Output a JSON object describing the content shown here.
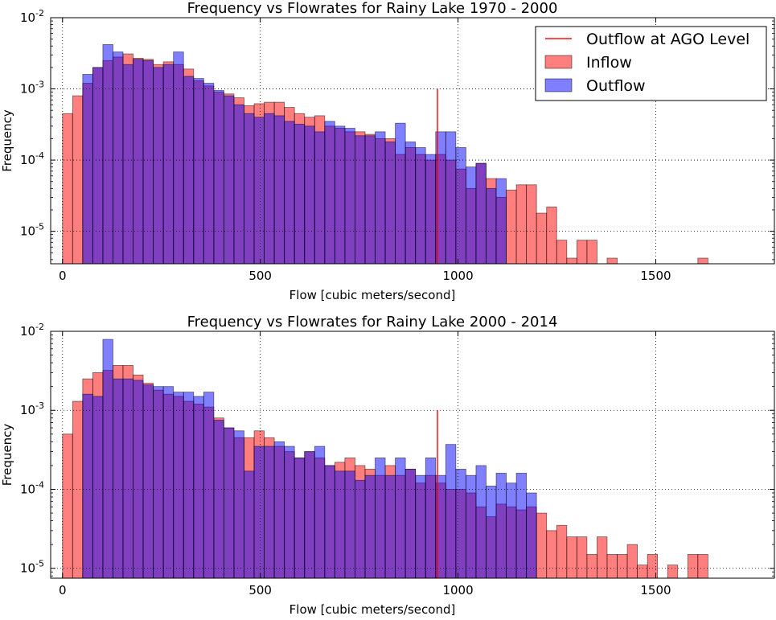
{
  "chart_data": [
    {
      "type": "histogram",
      "title": "Frequency vs Flowrates for Rainy Lake 1970 - 2000",
      "xlabel": "Flow [cubic meters/second]",
      "ylabel": "Frequency",
      "xlim": [
        -30,
        1800
      ],
      "ylim": [
        3.5e-06,
        0.01
      ],
      "yscale": "log",
      "grid": true,
      "legend_position": "top-right",
      "x_ticks": [
        {
          "value": 0,
          "label": "0"
        },
        {
          "value": 500,
          "label": "500"
        },
        {
          "value": 1000,
          "label": "1000"
        },
        {
          "value": 1500,
          "label": "1500"
        }
      ],
      "y_ticks": [
        {
          "value": 1e-05,
          "base": "10",
          "exp": "-5"
        },
        {
          "value": 0.0001,
          "base": "10",
          "exp": "-4"
        },
        {
          "value": 0.001,
          "base": "10",
          "exp": "-3"
        },
        {
          "value": 0.01,
          "base": "10",
          "exp": "-2"
        }
      ],
      "line": {
        "name": "Outflow at AGO Level",
        "x": 948,
        "y": [
          3.5e-06,
          0.001
        ],
        "color": "#ff0000"
      },
      "series": [
        {
          "name": "Inflow",
          "color": "#ff0000",
          "bin_width": 25.5,
          "bins": [
            {
              "x0": 0,
              "y": 0.00045
            },
            {
              "x0": 25.5,
              "y": 0.0008
            },
            {
              "x0": 51,
              "y": 0.0012
            },
            {
              "x0": 76.5,
              "y": 0.002
            },
            {
              "x0": 102,
              "y": 0.0025
            },
            {
              "x0": 127.5,
              "y": 0.0028
            },
            {
              "x0": 153,
              "y": 0.0031
            },
            {
              "x0": 178.5,
              "y": 0.0027
            },
            {
              "x0": 204,
              "y": 0.0026
            },
            {
              "x0": 229.5,
              "y": 0.0022
            },
            {
              "x0": 255,
              "y": 0.0024
            },
            {
              "x0": 280.5,
              "y": 0.0022
            },
            {
              "x0": 306,
              "y": 0.0019
            },
            {
              "x0": 331.5,
              "y": 0.0013
            },
            {
              "x0": 357,
              "y": 0.0011
            },
            {
              "x0": 382.5,
              "y": 0.0009
            },
            {
              "x0": 408,
              "y": 0.00085
            },
            {
              "x0": 433.5,
              "y": 0.00075
            },
            {
              "x0": 459,
              "y": 0.00058
            },
            {
              "x0": 484.5,
              "y": 0.00062
            },
            {
              "x0": 510,
              "y": 0.00065
            },
            {
              "x0": 535.5,
              "y": 0.00065
            },
            {
              "x0": 561,
              "y": 0.00055
            },
            {
              "x0": 586.5,
              "y": 0.00045
            },
            {
              "x0": 612,
              "y": 0.0004
            },
            {
              "x0": 637.5,
              "y": 0.00042
            },
            {
              "x0": 663,
              "y": 0.0003
            },
            {
              "x0": 688.5,
              "y": 0.00028
            },
            {
              "x0": 714,
              "y": 0.00025
            },
            {
              "x0": 739.5,
              "y": 0.00025
            },
            {
              "x0": 765,
              "y": 0.00023
            },
            {
              "x0": 790.5,
              "y": 0.0002
            },
            {
              "x0": 816,
              "y": 0.0002
            },
            {
              "x0": 841.5,
              "y": 0.00012
            },
            {
              "x0": 867,
              "y": 0.00015
            },
            {
              "x0": 892.5,
              "y": 0.00012
            },
            {
              "x0": 918,
              "y": 0.0001
            },
            {
              "x0": 943.5,
              "y": 0.00012
            },
            {
              "x0": 969,
              "y": 0.0001
            },
            {
              "x0": 994.5,
              "y": 7.5e-05
            },
            {
              "x0": 1020,
              "y": 4e-05
            },
            {
              "x0": 1045.5,
              "y": 9e-05
            },
            {
              "x0": 1071,
              "y": 5.5e-05
            },
            {
              "x0": 1096.5,
              "y": 3e-05
            },
            {
              "x0": 1122,
              "y": 3.8e-05
            },
            {
              "x0": 1147.5,
              "y": 4.5e-05
            },
            {
              "x0": 1173,
              "y": 4.5e-05
            },
            {
              "x0": 1198.5,
              "y": 1.8e-05
            },
            {
              "x0": 1224,
              "y": 2.2e-05
            },
            {
              "x0": 1249.5,
              "y": 7.5e-06
            },
            {
              "x0": 1275,
              "y": 4.2e-06
            },
            {
              "x0": 1300.5,
              "y": 7.5e-06
            },
            {
              "x0": 1326,
              "y": 7.5e-06
            },
            {
              "x0": 1377,
              "y": 4.2e-06
            },
            {
              "x0": 1606.5,
              "y": 4.2e-06
            }
          ]
        },
        {
          "name": "Outflow",
          "color": "#0000ff",
          "bin_width": 25.5,
          "bins": [
            {
              "x0": 51,
              "y": 0.0016
            },
            {
              "x0": 76.5,
              "y": 0.002
            },
            {
              "x0": 102,
              "y": 0.0042
            },
            {
              "x0": 127.5,
              "y": 0.0033
            },
            {
              "x0": 153,
              "y": 0.0022
            },
            {
              "x0": 178.5,
              "y": 0.0026
            },
            {
              "x0": 204,
              "y": 0.0025
            },
            {
              "x0": 229.5,
              "y": 0.002
            },
            {
              "x0": 255,
              "y": 0.0022
            },
            {
              "x0": 280.5,
              "y": 0.0033
            },
            {
              "x0": 306,
              "y": 0.0015
            },
            {
              "x0": 331.5,
              "y": 0.0014
            },
            {
              "x0": 357,
              "y": 0.0012
            },
            {
              "x0": 382.5,
              "y": 0.00095
            },
            {
              "x0": 408,
              "y": 0.0008
            },
            {
              "x0": 433.5,
              "y": 0.0006
            },
            {
              "x0": 459,
              "y": 0.00045
            },
            {
              "x0": 484.5,
              "y": 0.0004
            },
            {
              "x0": 510,
              "y": 0.00045
            },
            {
              "x0": 535.5,
              "y": 0.00042
            },
            {
              "x0": 561,
              "y": 0.00035
            },
            {
              "x0": 586.5,
              "y": 0.00032
            },
            {
              "x0": 612,
              "y": 0.0003
            },
            {
              "x0": 637.5,
              "y": 0.00025
            },
            {
              "x0": 663,
              "y": 0.00035
            },
            {
              "x0": 688.5,
              "y": 0.0003
            },
            {
              "x0": 714,
              "y": 0.00028
            },
            {
              "x0": 739.5,
              "y": 0.00022
            },
            {
              "x0": 765,
              "y": 0.00022
            },
            {
              "x0": 790.5,
              "y": 0.00025
            },
            {
              "x0": 816,
              "y": 0.00018
            },
            {
              "x0": 841.5,
              "y": 0.00033
            },
            {
              "x0": 867,
              "y": 0.00018
            },
            {
              "x0": 892.5,
              "y": 0.00015
            },
            {
              "x0": 918,
              "y": 0.00012
            },
            {
              "x0": 943.5,
              "y": 0.00025
            },
            {
              "x0": 969,
              "y": 0.00025
            },
            {
              "x0": 994.5,
              "y": 0.00015
            },
            {
              "x0": 1020,
              "y": 8e-05
            },
            {
              "x0": 1045.5,
              "y": 9e-05
            },
            {
              "x0": 1071,
              "y": 4e-05
            },
            {
              "x0": 1096.5,
              "y": 5.5e-05
            }
          ]
        }
      ]
    },
    {
      "type": "histogram",
      "title": "Frequency vs Flowrates for Rainy Lake 2000 - 2014",
      "xlabel": "Flow [cubic meters/second]",
      "ylabel": "Frequency",
      "xlim": [
        -30,
        1800
      ],
      "ylim": [
        7.5e-06,
        0.01
      ],
      "yscale": "log",
      "grid": true,
      "x_ticks": [
        {
          "value": 0,
          "label": "0"
        },
        {
          "value": 500,
          "label": "500"
        },
        {
          "value": 1000,
          "label": "1000"
        },
        {
          "value": 1500,
          "label": "1500"
        }
      ],
      "y_ticks": [
        {
          "value": 1e-05,
          "base": "10",
          "exp": "-5"
        },
        {
          "value": 0.0001,
          "base": "10",
          "exp": "-4"
        },
        {
          "value": 0.001,
          "base": "10",
          "exp": "-3"
        },
        {
          "value": 0.01,
          "base": "10",
          "exp": "-2"
        }
      ],
      "line": {
        "name": "Outflow at AGO Level",
        "x": 948,
        "y": [
          7.5e-06,
          0.001
        ],
        "color": "#ff0000"
      },
      "series": [
        {
          "name": "Inflow",
          "color": "#ff0000",
          "bin_width": 25.5,
          "bins": [
            {
              "x0": 0,
              "y": 0.0005
            },
            {
              "x0": 25.5,
              "y": 0.0013
            },
            {
              "x0": 51,
              "y": 0.0025
            },
            {
              "x0": 76.5,
              "y": 0.003
            },
            {
              "x0": 102,
              "y": 0.0032
            },
            {
              "x0": 127.5,
              "y": 0.0037
            },
            {
              "x0": 153,
              "y": 0.0037
            },
            {
              "x0": 178.5,
              "y": 0.0028
            },
            {
              "x0": 204,
              "y": 0.0022
            },
            {
              "x0": 229.5,
              "y": 0.0018
            },
            {
              "x0": 255,
              "y": 0.0016
            },
            {
              "x0": 280.5,
              "y": 0.0015
            },
            {
              "x0": 306,
              "y": 0.0013
            },
            {
              "x0": 331.5,
              "y": 0.0012
            },
            {
              "x0": 357,
              "y": 0.0011
            },
            {
              "x0": 382.5,
              "y": 0.0008
            },
            {
              "x0": 408,
              "y": 0.0006
            },
            {
              "x0": 433.5,
              "y": 0.00045
            },
            {
              "x0": 459,
              "y": 0.00045
            },
            {
              "x0": 484.5,
              "y": 0.00055
            },
            {
              "x0": 510,
              "y": 0.00045
            },
            {
              "x0": 535.5,
              "y": 0.00035
            },
            {
              "x0": 561,
              "y": 0.0003
            },
            {
              "x0": 586.5,
              "y": 0.00025
            },
            {
              "x0": 612,
              "y": 0.0003
            },
            {
              "x0": 637.5,
              "y": 0.00025
            },
            {
              "x0": 663,
              "y": 0.0002
            },
            {
              "x0": 688.5,
              "y": 0.00022
            },
            {
              "x0": 714,
              "y": 0.00025
            },
            {
              "x0": 739.5,
              "y": 0.0002
            },
            {
              "x0": 765,
              "y": 0.00018
            },
            {
              "x0": 790.5,
              "y": 0.00015
            },
            {
              "x0": 816,
              "y": 0.0002
            },
            {
              "x0": 841.5,
              "y": 0.00015
            },
            {
              "x0": 867,
              "y": 0.00018
            },
            {
              "x0": 892.5,
              "y": 0.00012
            },
            {
              "x0": 918,
              "y": 0.00015
            },
            {
              "x0": 943.5,
              "y": 0.00012
            },
            {
              "x0": 969,
              "y": 0.0001
            },
            {
              "x0": 994.5,
              "y": 0.0001
            },
            {
              "x0": 1020,
              "y": 9e-05
            },
            {
              "x0": 1045.5,
              "y": 6e-05
            },
            {
              "x0": 1071,
              "y": 4.5e-05
            },
            {
              "x0": 1096.5,
              "y": 6.5e-05
            },
            {
              "x0": 1122,
              "y": 6e-05
            },
            {
              "x0": 1147.5,
              "y": 5.5e-05
            },
            {
              "x0": 1173,
              "y": 6e-05
            },
            {
              "x0": 1198.5,
              "y": 5e-05
            },
            {
              "x0": 1224,
              "y": 3e-05
            },
            {
              "x0": 1249.5,
              "y": 3.5e-05
            },
            {
              "x0": 1275,
              "y": 2.5e-05
            },
            {
              "x0": 1300.5,
              "y": 2.5e-05
            },
            {
              "x0": 1326,
              "y": 1.5e-05
            },
            {
              "x0": 1351.5,
              "y": 2.5e-05
            },
            {
              "x0": 1377,
              "y": 1.5e-05
            },
            {
              "x0": 1402.5,
              "y": 1.5e-05
            },
            {
              "x0": 1428,
              "y": 2e-05
            },
            {
              "x0": 1453.5,
              "y": 1.1e-05
            },
            {
              "x0": 1479,
              "y": 1.5e-05
            },
            {
              "x0": 1530,
              "y": 1.1e-05
            },
            {
              "x0": 1581,
              "y": 1.5e-05
            },
            {
              "x0": 1606.5,
              "y": 1.5e-05
            }
          ]
        },
        {
          "name": "Outflow",
          "color": "#0000ff",
          "bin_width": 25.5,
          "bins": [
            {
              "x0": 51,
              "y": 0.0016
            },
            {
              "x0": 76.5,
              "y": 0.0015
            },
            {
              "x0": 102,
              "y": 0.0079
            },
            {
              "x0": 127.5,
              "y": 0.0025
            },
            {
              "x0": 153,
              "y": 0.0025
            },
            {
              "x0": 178.5,
              "y": 0.0024
            },
            {
              "x0": 204,
              "y": 0.0021
            },
            {
              "x0": 229.5,
              "y": 0.002
            },
            {
              "x0": 255,
              "y": 0.002
            },
            {
              "x0": 280.5,
              "y": 0.0017
            },
            {
              "x0": 306,
              "y": 0.0017
            },
            {
              "x0": 331.5,
              "y": 0.0015
            },
            {
              "x0": 357,
              "y": 0.0017
            },
            {
              "x0": 382.5,
              "y": 0.00075
            },
            {
              "x0": 408,
              "y": 0.0006
            },
            {
              "x0": 433.5,
              "y": 0.00055
            },
            {
              "x0": 459,
              "y": 0.00017
            },
            {
              "x0": 484.5,
              "y": 0.00035
            },
            {
              "x0": 510,
              "y": 0.00035
            },
            {
              "x0": 535.5,
              "y": 0.0004
            },
            {
              "x0": 561,
              "y": 0.00035
            },
            {
              "x0": 586.5,
              "y": 0.00025
            },
            {
              "x0": 612,
              "y": 0.0003
            },
            {
              "x0": 637.5,
              "y": 0.00035
            },
            {
              "x0": 663,
              "y": 0.0002
            },
            {
              "x0": 688.5,
              "y": 0.00017
            },
            {
              "x0": 714,
              "y": 0.00017
            },
            {
              "x0": 739.5,
              "y": 0.00013
            },
            {
              "x0": 765,
              "y": 0.00015
            },
            {
              "x0": 790.5,
              "y": 0.00025
            },
            {
              "x0": 816,
              "y": 0.00015
            },
            {
              "x0": 841.5,
              "y": 0.00025
            },
            {
              "x0": 867,
              "y": 0.00018
            },
            {
              "x0": 892.5,
              "y": 0.00015
            },
            {
              "x0": 918,
              "y": 0.00025
            },
            {
              "x0": 943.5,
              "y": 0.00015
            },
            {
              "x0": 969,
              "y": 0.00037
            },
            {
              "x0": 994.5,
              "y": 0.00018
            },
            {
              "x0": 1020,
              "y": 0.00015
            },
            {
              "x0": 1045.5,
              "y": 0.0002
            },
            {
              "x0": 1071,
              "y": 0.00011
            },
            {
              "x0": 1096.5,
              "y": 0.00016
            },
            {
              "x0": 1122,
              "y": 0.00012
            },
            {
              "x0": 1147.5,
              "y": 0.00016
            },
            {
              "x0": 1173,
              "y": 9e-05
            }
          ]
        }
      ]
    }
  ]
}
